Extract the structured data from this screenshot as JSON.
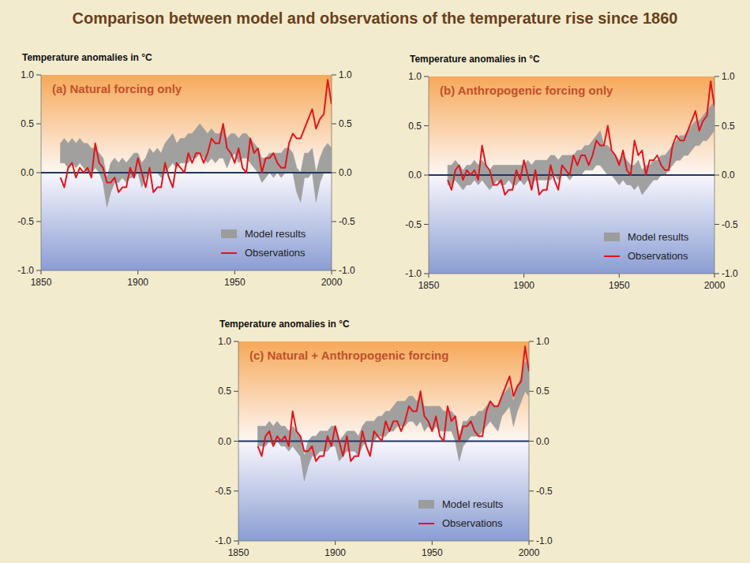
{
  "title": "Comparison between model and observations of the temperature rise since 1860",
  "chart_data": [
    {
      "type": "line",
      "title": "(a) Natural forcing only",
      "y_label": "Temperature anomalies in °C",
      "x": [
        1860,
        1862,
        1864,
        1866,
        1868,
        1870,
        1872,
        1874,
        1876,
        1878,
        1880,
        1882,
        1884,
        1886,
        1888,
        1890,
        1892,
        1894,
        1896,
        1898,
        1900,
        1902,
        1904,
        1906,
        1908,
        1910,
        1912,
        1914,
        1916,
        1918,
        1920,
        1922,
        1924,
        1926,
        1928,
        1930,
        1932,
        1934,
        1936,
        1938,
        1940,
        1942,
        1944,
        1946,
        1948,
        1950,
        1952,
        1954,
        1956,
        1958,
        1960,
        1962,
        1964,
        1966,
        1968,
        1970,
        1972,
        1974,
        1976,
        1978,
        1980,
        1982,
        1984,
        1986,
        1988,
        1990,
        1992,
        1994,
        1996,
        1998,
        2000
      ],
      "xlim": [
        1850,
        2000
      ],
      "xticks": [
        1850,
        1900,
        1950,
        2000
      ],
      "ylim": [
        -1,
        1
      ],
      "yticks": [
        {
          "value": -1,
          "label": "-1.0"
        },
        -0.5,
        {
          "value": 0,
          "label": "0.0"
        },
        0.5,
        {
          "value": 1,
          "label": "1.0"
        }
      ],
      "legend": "lower right",
      "series": [
        {
          "name": "Model results",
          "type": "band",
          "color": "#9c9c9c",
          "lower": [
            0.1,
            0.1,
            0.05,
            0.1,
            0.05,
            0.1,
            0.05,
            0.0,
            0.0,
            0.05,
            0.0,
            -0.1,
            -0.35,
            -0.2,
            -0.1,
            -0.1,
            -0.05,
            -0.1,
            -0.05,
            -0.05,
            0.0,
            -0.15,
            -0.05,
            0.0,
            0.0,
            0.0,
            -0.05,
            0.0,
            0.05,
            0.1,
            0.05,
            0.1,
            0.1,
            0.1,
            0.15,
            0.15,
            0.2,
            0.15,
            0.1,
            0.15,
            0.1,
            0.15,
            0.15,
            0.05,
            0.15,
            0.2,
            0.1,
            0.15,
            0.15,
            0.1,
            0.05,
            0.0,
            -0.1,
            -0.05,
            0.0,
            -0.05,
            0.0,
            -0.05,
            0.0,
            0.0,
            0.0,
            -0.2,
            -0.3,
            -0.05,
            -0.05,
            0.0,
            -0.3,
            -0.1,
            0.0,
            0.0,
            0.0
          ],
          "upper": [
            0.3,
            0.35,
            0.3,
            0.35,
            0.3,
            0.35,
            0.3,
            0.3,
            0.25,
            0.25,
            0.2,
            0.15,
            -0.05,
            0.1,
            0.15,
            0.1,
            0.15,
            0.1,
            0.15,
            0.2,
            0.2,
            0.1,
            0.15,
            0.25,
            0.2,
            0.25,
            0.2,
            0.3,
            0.35,
            0.4,
            0.3,
            0.35,
            0.35,
            0.4,
            0.4,
            0.45,
            0.5,
            0.45,
            0.4,
            0.45,
            0.4,
            0.4,
            0.45,
            0.35,
            0.4,
            0.4,
            0.35,
            0.4,
            0.4,
            0.35,
            0.3,
            0.25,
            0.15,
            0.15,
            0.2,
            0.2,
            0.2,
            0.2,
            0.25,
            0.25,
            0.2,
            0.05,
            0.0,
            0.2,
            0.2,
            0.25,
            0.0,
            0.15,
            0.25,
            0.3,
            0.25
          ]
        },
        {
          "name": "Observations",
          "type": "line",
          "color": "#e3141b",
          "values": [
            -0.05,
            -0.15,
            0.05,
            0.1,
            -0.05,
            0.05,
            0.0,
            0.05,
            -0.05,
            0.3,
            0.1,
            0.05,
            -0.1,
            -0.1,
            -0.05,
            -0.2,
            -0.15,
            -0.15,
            0.05,
            -0.05,
            0.15,
            0.0,
            -0.15,
            0.05,
            -0.2,
            -0.15,
            -0.15,
            0.1,
            -0.05,
            -0.15,
            0.1,
            0.05,
            0.0,
            0.2,
            0.1,
            0.2,
            0.2,
            0.1,
            0.2,
            0.35,
            0.3,
            0.3,
            0.5,
            0.25,
            0.2,
            0.1,
            0.25,
            0.05,
            0.0,
            0.35,
            0.2,
            0.25,
            0.0,
            0.15,
            0.15,
            0.2,
            0.1,
            0.05,
            0.05,
            0.3,
            0.4,
            0.35,
            0.35,
            0.45,
            0.55,
            0.65,
            0.45,
            0.55,
            0.6,
            0.95,
            0.7
          ]
        }
      ]
    },
    {
      "type": "line",
      "title": "(b) Anthropogenic forcing only",
      "y_label": "Temperature anomalies in °C",
      "x": [
        1860,
        1862,
        1864,
        1866,
        1868,
        1870,
        1872,
        1874,
        1876,
        1878,
        1880,
        1882,
        1884,
        1886,
        1888,
        1890,
        1892,
        1894,
        1896,
        1898,
        1900,
        1902,
        1904,
        1906,
        1908,
        1910,
        1912,
        1914,
        1916,
        1918,
        1920,
        1922,
        1924,
        1926,
        1928,
        1930,
        1932,
        1934,
        1936,
        1938,
        1940,
        1942,
        1944,
        1946,
        1948,
        1950,
        1952,
        1954,
        1956,
        1958,
        1960,
        1962,
        1964,
        1966,
        1968,
        1970,
        1972,
        1974,
        1976,
        1978,
        1980,
        1982,
        1984,
        1986,
        1988,
        1990,
        1992,
        1994,
        1996,
        1998,
        2000
      ],
      "xlim": [
        1850,
        2000
      ],
      "xticks": [
        1850,
        1900,
        1950,
        2000
      ],
      "ylim": [
        -1,
        1
      ],
      "yticks": [
        {
          "value": -1,
          "label": "-1.0"
        },
        -0.5,
        {
          "value": 0,
          "label": "0.0"
        },
        0.5,
        {
          "value": 1,
          "label": "1.0"
        }
      ],
      "legend": "lower right",
      "series": [
        {
          "name": "Model results",
          "type": "band",
          "color": "#9c9c9c",
          "lower": [
            -0.1,
            -0.1,
            -0.05,
            -0.1,
            -0.15,
            -0.1,
            -0.1,
            -0.05,
            -0.1,
            -0.05,
            -0.1,
            -0.15,
            -0.1,
            -0.05,
            -0.1,
            -0.1,
            -0.05,
            -0.1,
            -0.1,
            -0.05,
            -0.1,
            -0.05,
            -0.1,
            -0.05,
            -0.05,
            -0.05,
            -0.05,
            -0.05,
            0.0,
            -0.05,
            0.0,
            0.0,
            -0.05,
            0.0,
            0.0,
            0.0,
            0.05,
            0.05,
            0.05,
            0.1,
            0.1,
            0.05,
            0.0,
            0.0,
            -0.05,
            -0.1,
            -0.05,
            -0.1,
            -0.1,
            -0.15,
            -0.1,
            -0.2,
            -0.15,
            -0.1,
            -0.05,
            -0.05,
            0.0,
            0.0,
            0.05,
            0.1,
            0.15,
            0.15,
            0.2,
            0.2,
            0.25,
            0.3,
            0.3,
            0.35,
            0.35,
            0.4,
            0.45
          ],
          "upper": [
            0.1,
            0.1,
            0.15,
            0.1,
            0.05,
            0.1,
            0.1,
            0.15,
            0.1,
            0.15,
            0.1,
            0.05,
            0.1,
            0.1,
            0.1,
            0.1,
            0.1,
            0.1,
            0.1,
            0.1,
            0.1,
            0.15,
            0.1,
            0.15,
            0.15,
            0.15,
            0.15,
            0.2,
            0.2,
            0.15,
            0.2,
            0.2,
            0.2,
            0.2,
            0.25,
            0.25,
            0.3,
            0.3,
            0.35,
            0.4,
            0.45,
            0.3,
            0.3,
            0.25,
            0.2,
            0.15,
            0.2,
            0.15,
            0.1,
            0.1,
            0.15,
            0.05,
            0.1,
            0.1,
            0.15,
            0.15,
            0.2,
            0.2,
            0.25,
            0.3,
            0.35,
            0.4,
            0.4,
            0.45,
            0.5,
            0.55,
            0.55,
            0.6,
            0.65,
            0.7,
            0.75
          ]
        },
        {
          "name": "Observations",
          "type": "line",
          "color": "#e3141b",
          "values": [
            -0.05,
            -0.15,
            0.05,
            0.1,
            -0.05,
            0.05,
            0.0,
            0.05,
            -0.05,
            0.3,
            0.1,
            0.05,
            -0.1,
            -0.1,
            -0.05,
            -0.2,
            -0.15,
            -0.15,
            0.05,
            -0.05,
            0.15,
            0.0,
            -0.15,
            0.05,
            -0.2,
            -0.15,
            -0.15,
            0.1,
            -0.05,
            -0.15,
            0.1,
            0.05,
            0.0,
            0.2,
            0.1,
            0.2,
            0.2,
            0.1,
            0.2,
            0.35,
            0.3,
            0.3,
            0.5,
            0.25,
            0.2,
            0.1,
            0.25,
            0.05,
            0.0,
            0.35,
            0.2,
            0.25,
            0.0,
            0.15,
            0.15,
            0.2,
            0.1,
            0.05,
            0.05,
            0.3,
            0.4,
            0.35,
            0.35,
            0.45,
            0.55,
            0.65,
            0.45,
            0.55,
            0.6,
            0.95,
            0.7
          ]
        }
      ]
    },
    {
      "type": "line",
      "title": "(c) Natural + Anthropogenic forcing",
      "y_label": "Temperature anomalies in °C",
      "x": [
        1860,
        1862,
        1864,
        1866,
        1868,
        1870,
        1872,
        1874,
        1876,
        1878,
        1880,
        1882,
        1884,
        1886,
        1888,
        1890,
        1892,
        1894,
        1896,
        1898,
        1900,
        1902,
        1904,
        1906,
        1908,
        1910,
        1912,
        1914,
        1916,
        1918,
        1920,
        1922,
        1924,
        1926,
        1928,
        1930,
        1932,
        1934,
        1936,
        1938,
        1940,
        1942,
        1944,
        1946,
        1948,
        1950,
        1952,
        1954,
        1956,
        1958,
        1960,
        1962,
        1964,
        1966,
        1968,
        1970,
        1972,
        1974,
        1976,
        1978,
        1980,
        1982,
        1984,
        1986,
        1988,
        1990,
        1992,
        1994,
        1996,
        1998,
        2000
      ],
      "xlim": [
        1850,
        2000
      ],
      "xticks": [
        1850,
        1900,
        1950,
        2000
      ],
      "ylim": [
        -1,
        1
      ],
      "yticks": [
        {
          "value": -1,
          "label": "-1.0"
        },
        -0.5,
        {
          "value": 0,
          "label": "0.0"
        },
        0.5,
        {
          "value": 1,
          "label": "1.0"
        }
      ],
      "legend": "lower right",
      "series": [
        {
          "name": "Model results",
          "type": "band",
          "color": "#9c9c9c",
          "lower": [
            -0.05,
            -0.05,
            -0.05,
            0.0,
            -0.05,
            0.0,
            -0.05,
            -0.05,
            -0.1,
            -0.05,
            -0.1,
            -0.15,
            -0.4,
            -0.25,
            -0.15,
            -0.15,
            -0.1,
            -0.1,
            -0.1,
            -0.05,
            -0.05,
            -0.2,
            -0.15,
            -0.1,
            -0.1,
            -0.1,
            -0.15,
            -0.05,
            0.0,
            0.0,
            0.0,
            0.05,
            0.05,
            0.05,
            0.1,
            0.1,
            0.15,
            0.15,
            0.15,
            0.2,
            0.2,
            0.15,
            0.2,
            0.1,
            0.15,
            0.1,
            0.15,
            0.1,
            0.1,
            0.1,
            0.1,
            0.0,
            -0.2,
            -0.05,
            0.0,
            0.05,
            0.05,
            0.05,
            0.1,
            0.15,
            0.2,
            0.15,
            0.1,
            0.25,
            0.3,
            0.35,
            0.15,
            0.3,
            0.4,
            0.5,
            0.45
          ],
          "upper": [
            0.15,
            0.15,
            0.15,
            0.2,
            0.15,
            0.2,
            0.15,
            0.15,
            0.1,
            0.15,
            0.1,
            0.05,
            -0.15,
            0.0,
            0.05,
            0.05,
            0.1,
            0.1,
            0.1,
            0.15,
            0.15,
            0.0,
            0.05,
            0.1,
            0.1,
            0.1,
            0.05,
            0.15,
            0.2,
            0.2,
            0.2,
            0.25,
            0.25,
            0.3,
            0.3,
            0.35,
            0.4,
            0.4,
            0.4,
            0.45,
            0.45,
            0.4,
            0.45,
            0.35,
            0.35,
            0.35,
            0.35,
            0.35,
            0.3,
            0.3,
            0.3,
            0.25,
            0.05,
            0.2,
            0.2,
            0.25,
            0.25,
            0.3,
            0.3,
            0.35,
            0.4,
            0.35,
            0.35,
            0.45,
            0.5,
            0.55,
            0.4,
            0.55,
            0.65,
            0.8,
            0.75
          ]
        },
        {
          "name": "Observations",
          "type": "line",
          "color": "#e3141b",
          "values": [
            -0.05,
            -0.15,
            0.05,
            0.1,
            -0.05,
            0.05,
            0.0,
            0.05,
            -0.05,
            0.3,
            0.1,
            0.05,
            -0.1,
            -0.1,
            -0.05,
            -0.2,
            -0.15,
            -0.15,
            0.05,
            -0.05,
            0.15,
            0.0,
            -0.15,
            0.05,
            -0.2,
            -0.15,
            -0.15,
            0.1,
            -0.05,
            -0.15,
            0.1,
            0.05,
            0.0,
            0.2,
            0.1,
            0.2,
            0.2,
            0.1,
            0.2,
            0.35,
            0.3,
            0.3,
            0.5,
            0.25,
            0.2,
            0.1,
            0.25,
            0.05,
            0.0,
            0.35,
            0.2,
            0.25,
            0.0,
            0.15,
            0.15,
            0.2,
            0.1,
            0.05,
            0.05,
            0.3,
            0.4,
            0.35,
            0.35,
            0.45,
            0.55,
            0.65,
            0.45,
            0.55,
            0.6,
            0.95,
            0.7
          ]
        }
      ]
    }
  ]
}
